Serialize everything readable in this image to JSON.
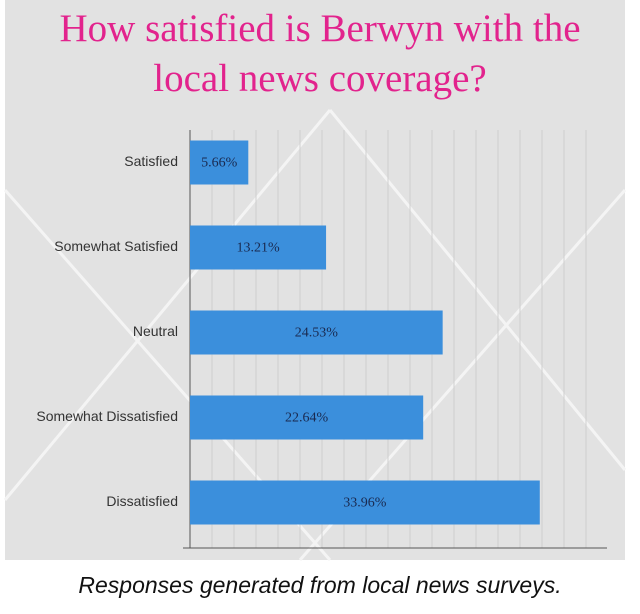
{
  "chart_data": {
    "type": "barh",
    "title": "How satisfied is Berwyn with the local news coverage?",
    "caption": "Responses generated from local news surveys.",
    "categories": [
      "Satisfied",
      "Somewhat Satisfied",
      "Neutral",
      "Somewhat Dissatisfied",
      "Dissatisfied"
    ],
    "values": [
      5.66,
      13.21,
      24.53,
      22.64,
      33.96
    ],
    "value_labels": [
      "5.66%",
      "13.21%",
      "24.53%",
      "22.64%",
      "33.96%"
    ],
    "color": "#3b8fdc",
    "xlim": [
      0,
      40
    ]
  }
}
